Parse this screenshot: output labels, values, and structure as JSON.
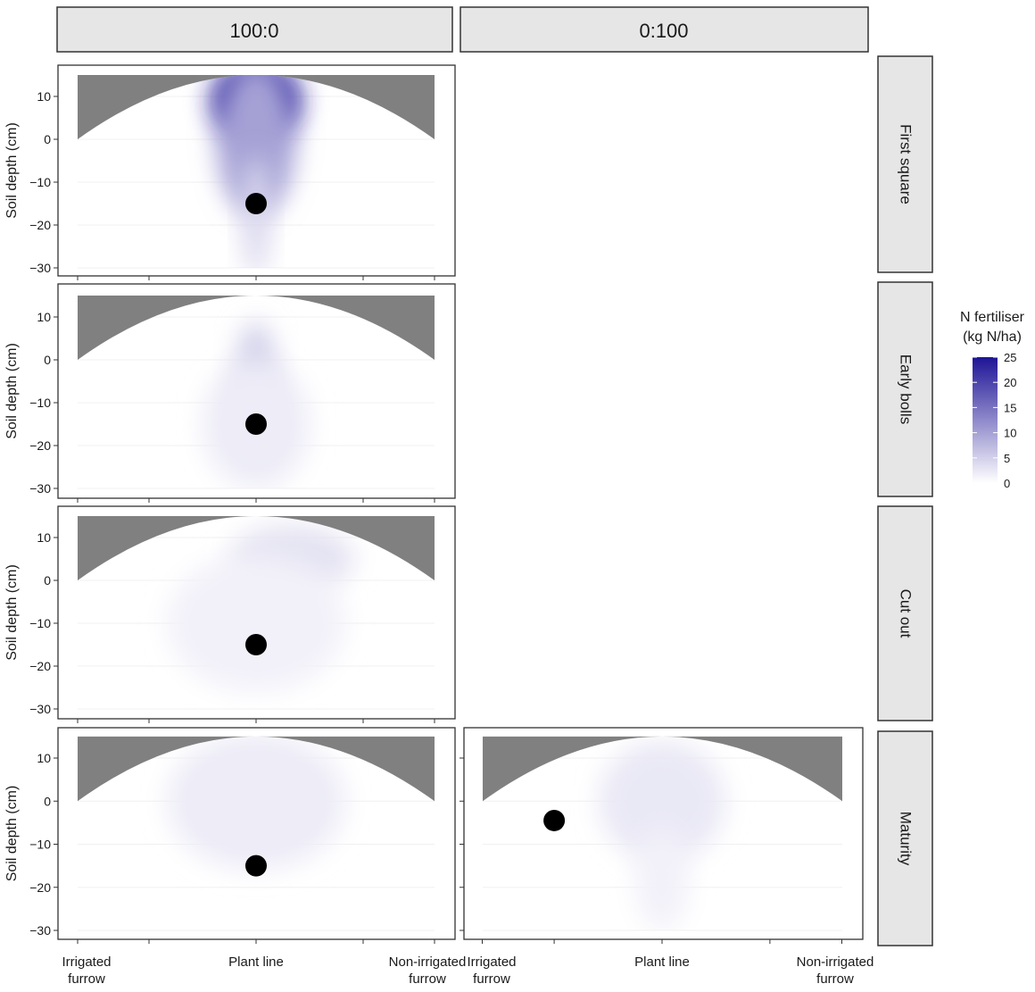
{
  "chart_data": {
    "type": "heatmap",
    "columns": [
      "100:0",
      "0:100"
    ],
    "rows": [
      "First square",
      "Early bolls",
      "Cut out",
      "Maturity"
    ],
    "ylabel": "Soil depth (cm)",
    "yticks": [
      10,
      0,
      -10,
      -20,
      -30
    ],
    "ylim": [
      -31,
      16
    ],
    "xtick_labels": [
      {
        "line1": "Irrigated",
        "line2": "furrow"
      },
      {
        "line1": "Plant line",
        "line2": ""
      },
      {
        "line1": "Non-irrigated",
        "line2": "furrow"
      }
    ],
    "legend": {
      "title_line1": "N fertiliser",
      "title_line2": "(kg N/ha)",
      "ticks": [
        25,
        20,
        15,
        10,
        5,
        0
      ],
      "range": [
        0,
        25
      ],
      "low_color": "#ffffff",
      "high_color": "#1e1496"
    },
    "colors": {
      "soil_mask": "#808080",
      "point": "#000000",
      "strip_bg": "#e6e6e6"
    },
    "panels": [
      {
        "column": "100:0",
        "row": "First square",
        "point": {
          "x": 0.0,
          "y": -15
        },
        "blobs": [
          {
            "x": 0.0,
            "y": 9,
            "rx": 0.25,
            "ry": 9,
            "value": 24
          },
          {
            "x": 0.0,
            "y": 0,
            "rx": 0.22,
            "ry": 18,
            "value": 10
          },
          {
            "x": 0.0,
            "y": -18,
            "rx": 0.08,
            "ry": 14,
            "value": 4
          }
        ]
      },
      {
        "column": "100:0",
        "row": "Early bolls",
        "point": {
          "x": 0.0,
          "y": -15
        },
        "blobs": [
          {
            "x": 0.0,
            "y": -5,
            "rx": 0.12,
            "ry": 14,
            "value": 5
          },
          {
            "x": 0.0,
            "y": -15,
            "rx": 0.3,
            "ry": 15,
            "value": 2
          }
        ]
      },
      {
        "column": "100:0",
        "row": "Cut out",
        "point": {
          "x": 0.0,
          "y": -15
        },
        "blobs": [
          {
            "x": 0.2,
            "y": 5,
            "rx": 0.35,
            "ry": 8,
            "value": 3
          },
          {
            "x": 0.0,
            "y": -10,
            "rx": 0.5,
            "ry": 16,
            "value": 1.5
          }
        ]
      },
      {
        "column": "100:0",
        "row": "Maturity",
        "point": {
          "x": 0.0,
          "y": -15
        },
        "blobs": [
          {
            "x": 0.0,
            "y": 0,
            "rx": 0.5,
            "ry": 16,
            "value": 2
          }
        ]
      },
      {
        "column": "0:100",
        "row": "Maturity",
        "point": {
          "x": -0.6,
          "y": -4.5
        },
        "blobs": [
          {
            "x": 0.0,
            "y": 0,
            "rx": 0.35,
            "ry": 14,
            "value": 2.5
          },
          {
            "x": 0.0,
            "y": -18,
            "rx": 0.15,
            "ry": 12,
            "value": 1.5
          }
        ]
      }
    ]
  }
}
